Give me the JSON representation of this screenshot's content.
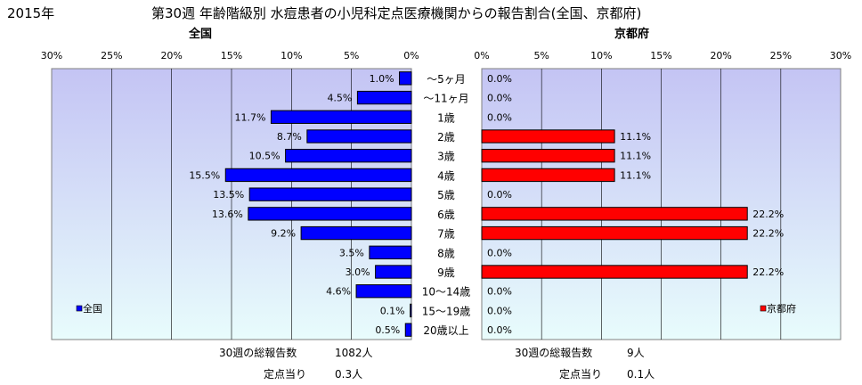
{
  "header": {
    "year": "2015年",
    "title": "第30週 年齢階級別 水痘患者の小児科定点医療機関からの報告割合(全国、京都府)"
  },
  "chart_data": {
    "type": "bar",
    "orientation": "horizontal",
    "categories": [
      "～5ヶ月",
      "～11ヶ月",
      "1歳",
      "2歳",
      "3歳",
      "4歳",
      "5歳",
      "6歳",
      "7歳",
      "8歳",
      "9歳",
      "10～14歳",
      "15～19歳",
      "20歳以上"
    ],
    "xlim": [
      0,
      30
    ],
    "grid": true,
    "charts": [
      {
        "title": "全国",
        "legend": "全国",
        "legend_position": "bottom-left",
        "color": "#0000ff",
        "direction": "reversed",
        "tick_labels": [
          "30%",
          "25%",
          "20%",
          "15%",
          "10%",
          "5%",
          "0%"
        ],
        "values": [
          1.0,
          4.5,
          11.7,
          8.7,
          10.5,
          15.5,
          13.5,
          13.6,
          9.2,
          3.5,
          3.0,
          4.6,
          0.1,
          0.5
        ],
        "labels": [
          "1.0%",
          "4.5%",
          "11.7%",
          "8.7%",
          "10.5%",
          "15.5%",
          "13.5%",
          "13.6%",
          "9.2%",
          "3.5%",
          "3.0%",
          "4.6%",
          "0.1%",
          "0.5%"
        ]
      },
      {
        "title": "京都府",
        "legend": "京都府",
        "legend_position": "bottom-right",
        "color": "#ff0000",
        "direction": "normal",
        "tick_labels": [
          "0%",
          "5%",
          "10%",
          "15%",
          "20%",
          "25%",
          "30%"
        ],
        "values": [
          0.0,
          0.0,
          0.0,
          11.1,
          11.1,
          11.1,
          0.0,
          22.2,
          22.2,
          0.0,
          22.2,
          0.0,
          0.0,
          0.0
        ],
        "labels": [
          "0.0%",
          "0.0%",
          "0.0%",
          "11.1%",
          "11.1%",
          "11.1%",
          "0.0%",
          "22.2%",
          "22.2%",
          "0.0%",
          "22.2%",
          "0.0%",
          "0.0%",
          "0.0%"
        ]
      }
    ]
  },
  "stats": {
    "left": {
      "total_label": "30週の総報告数",
      "total_value": "1082人",
      "per_label": "定点当り",
      "per_value": "0.3人"
    },
    "right": {
      "total_label": "30週の総報告数",
      "total_value": "9人",
      "per_label": "定点当り",
      "per_value": "0.1人"
    }
  }
}
